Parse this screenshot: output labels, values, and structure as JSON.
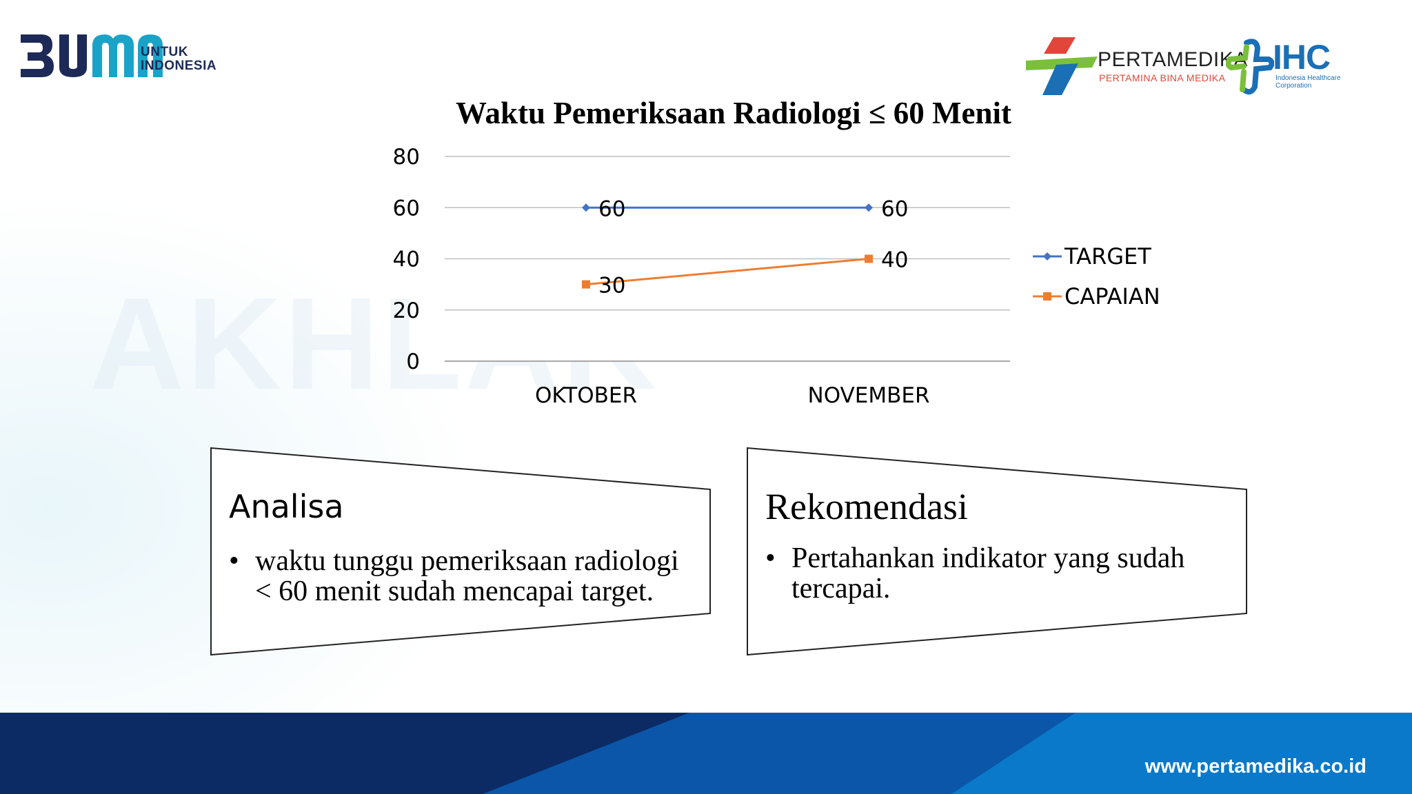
{
  "header": {
    "left_logo_text": "BUMN",
    "left_logo_sub": [
      "UNTUK",
      "INDONESIA"
    ],
    "right_logo_name": "PERTAMEDIKA",
    "right_logo_sub": "PERTAMINA BINA MEDIKA",
    "ihc_name": "IHC",
    "ihc_sub": [
      "Indonesia Healthcare",
      "Corporation"
    ]
  },
  "watermark": "AKHLAK",
  "chart_data": {
    "type": "line",
    "title": "Waktu Pemeriksaan Radiologi ≤ 60 Menit",
    "categories": [
      "OKTOBER",
      "NOVEMBER"
    ],
    "series": [
      {
        "name": "TARGET",
        "values": [
          60,
          60
        ],
        "color": "#4472c4",
        "marker": "diamond"
      },
      {
        "name": "CAPAIAN",
        "values": [
          30,
          40
        ],
        "color": "#ed7d31",
        "marker": "square"
      }
    ],
    "ylim": [
      0,
      80
    ],
    "yticks": [
      0,
      20,
      40,
      60,
      80
    ],
    "grid": true,
    "legend": "right",
    "data_labels": true
  },
  "boxes": {
    "analisa": {
      "title": "Analisa",
      "items": [
        "waktu tunggu pemeriksaan radiologi < 60 menit sudah mencapai target."
      ]
    },
    "rekomendasi": {
      "title": "Rekomendasi",
      "items": [
        "Pertahankan indikator yang sudah tercapai."
      ]
    }
  },
  "footer": {
    "url": "www.pertamedika.co.id",
    "colors": [
      "#0c2a63",
      "#0b56a8",
      "#0a79c9"
    ]
  }
}
